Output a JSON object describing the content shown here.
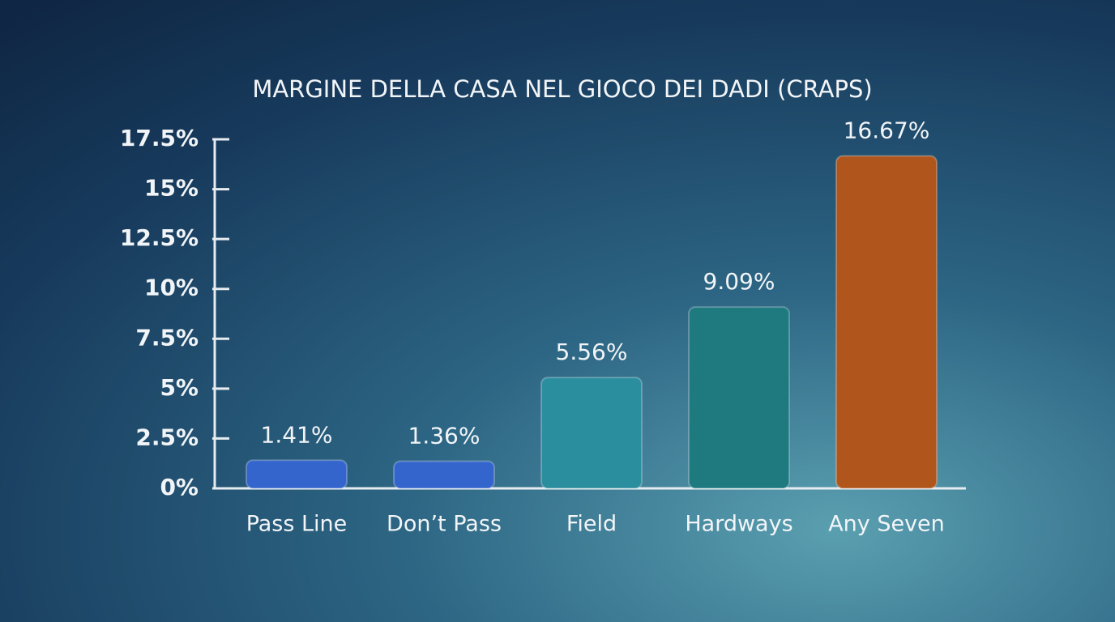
{
  "chart_data": {
    "type": "bar",
    "title": "MARGINE DELLA CASA NEL GIOCO DEI DADI (CRAPS)",
    "categories": [
      "Pass Line",
      "Don’t Pass",
      "Field",
      "Hardways",
      "Any Seven"
    ],
    "values": [
      1.41,
      1.36,
      5.56,
      9.09,
      16.67
    ],
    "value_labels": [
      "1.41%",
      "1.36%",
      "5.56%",
      "9.09%",
      "16.67%"
    ],
    "colors": [
      "#3465cc",
      "#3465cc",
      "#2b8e9e",
      "#1f7a80",
      "#b0561c"
    ],
    "ylim": [
      0,
      17.5
    ],
    "yticks": [
      {
        "value": 0,
        "label": "0%"
      },
      {
        "value": 2.5,
        "label": "2.5%"
      },
      {
        "value": 5,
        "label": "5%"
      },
      {
        "value": 7.5,
        "label": "7.5%"
      },
      {
        "value": 10,
        "label": "10%"
      },
      {
        "value": 12.5,
        "label": "12.5%"
      },
      {
        "value": 15,
        "label": "15%"
      },
      {
        "value": 17.5,
        "label": "17.5%"
      }
    ],
    "grid": false
  }
}
